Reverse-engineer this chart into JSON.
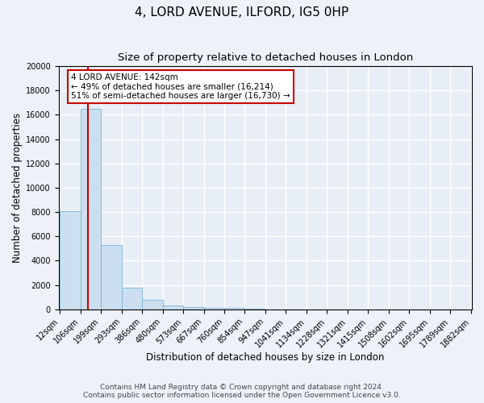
{
  "title": "4, LORD AVENUE, ILFORD, IG5 0HP",
  "subtitle": "Size of property relative to detached houses in London",
  "xlabel": "Distribution of detached houses by size in London",
  "ylabel": "Number of detached properties",
  "bin_labels": [
    "12sqm",
    "106sqm",
    "199sqm",
    "293sqm",
    "386sqm",
    "480sqm",
    "573sqm",
    "667sqm",
    "760sqm",
    "854sqm",
    "947sqm",
    "1041sqm",
    "1134sqm",
    "1228sqm",
    "1321sqm",
    "1415sqm",
    "1508sqm",
    "1602sqm",
    "1695sqm",
    "1789sqm",
    "1882sqm"
  ],
  "bar_heights": [
    8100,
    16500,
    5300,
    1800,
    800,
    300,
    200,
    150,
    100,
    50,
    0,
    0,
    0,
    0,
    0,
    0,
    0,
    0,
    0,
    0
  ],
  "bar_color": "#ccdff0",
  "bar_edge_color": "#7ab4d8",
  "bin_edges_numeric": [
    12,
    106,
    199,
    293,
    386,
    480,
    573,
    667,
    760,
    854,
    947,
    1041,
    1134,
    1228,
    1321,
    1415,
    1508,
    1602,
    1695,
    1789,
    1882
  ],
  "property_size": 142,
  "annotation_title": "4 LORD AVENUE: 142sqm",
  "annotation_line1": "← 49% of detached houses are smaller (16,214)",
  "annotation_line2": "51% of semi-detached houses are larger (16,730) →",
  "annotation_box_color": "#ffffff",
  "annotation_box_edge": "#cc0000",
  "red_line_color": "#cc0000",
  "ylim": [
    0,
    20000
  ],
  "yticks": [
    0,
    2000,
    4000,
    6000,
    8000,
    10000,
    12000,
    14000,
    16000,
    18000,
    20000
  ],
  "footnote1": "Contains HM Land Registry data © Crown copyright and database right 2024.",
  "footnote2": "Contains public sector information licensed under the Open Government Licence v3.0.",
  "bg_color": "#eef2f8",
  "plot_bg_color": "#e8eef6",
  "grid_color": "#ffffff",
  "title_fontsize": 11,
  "subtitle_fontsize": 9.5,
  "axis_label_fontsize": 8.5,
  "tick_fontsize": 7,
  "footnote_fontsize": 6.5
}
